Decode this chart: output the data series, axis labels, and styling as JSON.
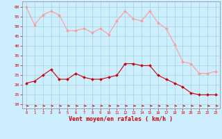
{
  "x": [
    0,
    1,
    2,
    3,
    4,
    5,
    6,
    7,
    8,
    9,
    10,
    11,
    12,
    13,
    14,
    15,
    16,
    17,
    18,
    19,
    20,
    21,
    22,
    23
  ],
  "rafales": [
    60,
    51,
    56,
    58,
    56,
    48,
    48,
    49,
    47,
    49,
    46,
    53,
    58,
    54,
    53,
    58,
    52,
    49,
    41,
    32,
    31,
    26,
    26,
    27
  ],
  "moyen": [
    21,
    22,
    25,
    28,
    23,
    23,
    26,
    24,
    23,
    23,
    24,
    25,
    31,
    31,
    30,
    30,
    25,
    23,
    21,
    19,
    16,
    15,
    15,
    15
  ],
  "line_color_rafales": "#ff9999",
  "line_color_moyen": "#cc0000",
  "marker_color_rafales": "#ff9999",
  "marker_color_moyen": "#cc0000",
  "arrow_color": "#cc0000",
  "bg_color": "#cceeff",
  "grid_color": "#99cccc",
  "xlabel": "Vent moyen/en rafales ( km/h )",
  "xlabel_color": "#cc0000",
  "ylim": [
    8,
    63
  ],
  "yticks": [
    10,
    15,
    20,
    25,
    30,
    35,
    40,
    45,
    50,
    55,
    60
  ],
  "tick_color": "#cc0000",
  "axes_color": "#888888"
}
